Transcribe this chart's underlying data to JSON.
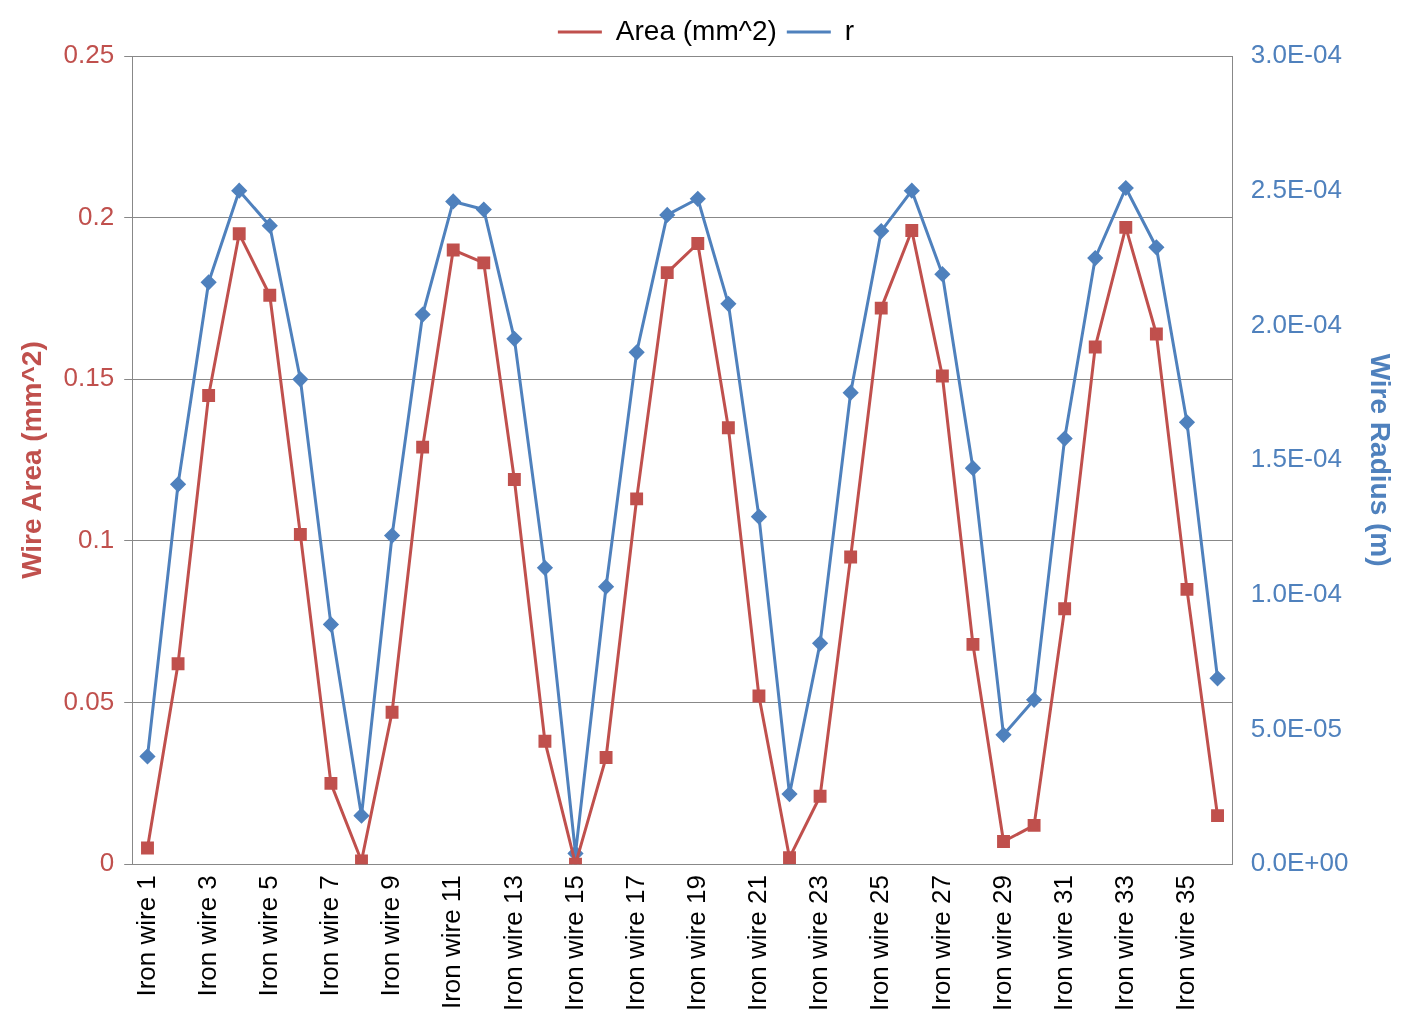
{
  "chart_data": {
    "type": "line",
    "ylabel": "Wire Area (mm^2)",
    "y2label": "Wire Radius (m)",
    "categories": [
      "Iron wire 1",
      null,
      "Iron wire 3",
      null,
      "Iron wire 5",
      null,
      "Iron wire 7",
      null,
      "Iron wire 9",
      null,
      "Iron wire 11",
      null,
      "Iron wire 13",
      null,
      "Iron wire 15",
      null,
      "Iron wire 17",
      null,
      "Iron wire 19",
      null,
      "Iron wire 21",
      null,
      "Iron wire 23",
      null,
      "Iron wire 25",
      null,
      "Iron wire 27",
      null,
      "Iron wire 29",
      null,
      "Iron wire 31",
      null,
      "Iron wire 33",
      null,
      "Iron wire 35",
      null
    ],
    "series": [
      {
        "name": "Area (mm^2)",
        "color": "#c0504d",
        "marker": "square",
        "values": [
          0.005,
          0.062,
          0.145,
          0.195,
          0.176,
          0.102,
          0.025,
          0.001,
          0.047,
          0.129,
          0.19,
          0.186,
          0.119,
          0.038,
          0.0,
          0.033,
          0.113,
          0.183,
          0.192,
          0.135,
          0.052,
          0.002,
          0.021,
          0.095,
          0.172,
          0.196,
          0.151,
          0.068,
          0.007,
          0.012,
          0.079,
          0.16,
          0.197,
          0.164,
          0.085,
          0.015
        ]
      },
      {
        "name": "r",
        "color": "#4f81bd",
        "marker": "diamond",
        "axis": "y2",
        "values": [
          4e-05,
          0.000141,
          0.000216,
          0.00025,
          0.000237,
          0.00018,
          8.9e-05,
          1.8e-05,
          0.000122,
          0.000204,
          0.000246,
          0.000243,
          0.000195,
          0.00011,
          4e-06,
          0.000103,
          0.00019,
          0.000241,
          0.000247,
          0.000208,
          0.000129,
          2.6e-05,
          8.2e-05,
          0.000175,
          0.000235,
          0.00025,
          0.000219,
          0.000147,
          4.8e-05,
          6.1e-05,
          0.000158,
          0.000225,
          0.000251,
          0.000229,
          0.000164,
          6.9e-05
        ]
      }
    ],
    "ylim": [
      0,
      0.25
    ],
    "yticks": [
      0,
      0.05,
      0.1,
      0.15,
      0.2,
      0.25
    ],
    "y2lim": [
      0,
      0.0003
    ],
    "y2ticks": [
      {
        "value": 0,
        "label": "0.0E+00"
      },
      {
        "value": 5e-05,
        "label": "5.0E-05"
      },
      {
        "value": 0.0001,
        "label": "1.0E-04"
      },
      {
        "value": 0.00015,
        "label": "1.5E-04"
      },
      {
        "value": 0.0002,
        "label": "2.0E-04"
      },
      {
        "value": 0.00025,
        "label": "2.5E-04"
      },
      {
        "value": 0.0003,
        "label": "3.0E-04"
      }
    ],
    "grid": "y",
    "legend": "top",
    "line_style": "solid"
  }
}
